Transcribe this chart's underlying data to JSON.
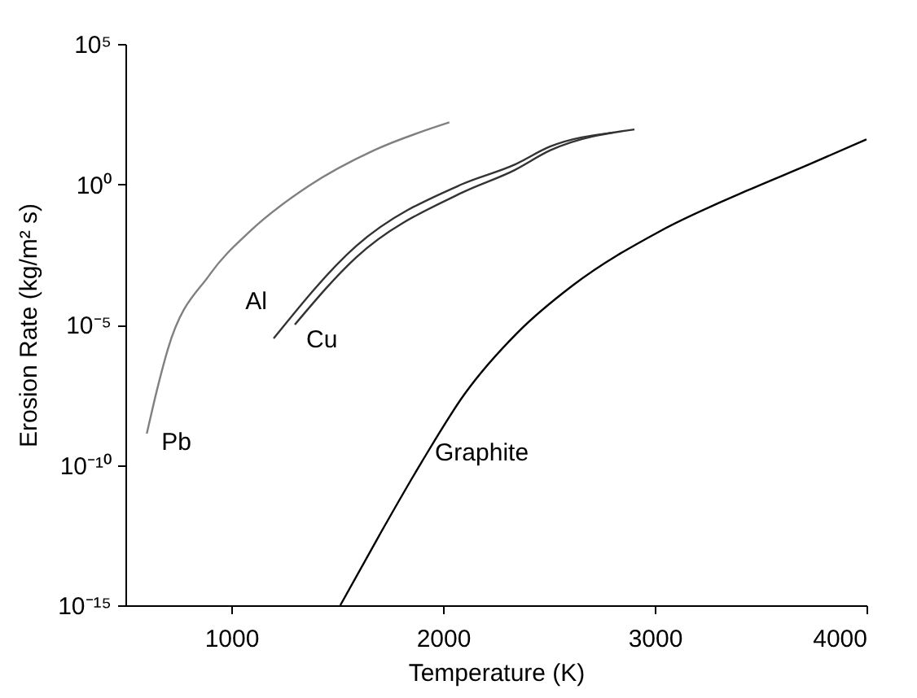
{
  "chart_data": {
    "type": "line",
    "xlabel": "Temperature (K)",
    "ylabel": "Erosion Rate (kg/m² s)",
    "log": "y",
    "xlim": [
      500,
      4000
    ],
    "xticks": [
      1000,
      2000,
      3000,
      4000
    ],
    "ylim": [
      1e-15,
      100000
    ],
    "yticks": [
      {
        "value": 1e-15,
        "label": "10⁻¹⁵"
      },
      {
        "value": 1e-10,
        "label": "10⁻¹⁰"
      },
      {
        "value": 1e-05,
        "label": "10⁻⁵"
      },
      {
        "value": 1,
        "label": "10⁰"
      },
      {
        "value": 100000,
        "label": "10⁵"
      }
    ],
    "grid": false,
    "marker": "none",
    "line_style": "solid",
    "series": [
      {
        "name": "Pb",
        "color": "#808080",
        "x": [
          601,
          650,
          700,
          900,
          1091,
          1366,
          1673,
          2030
        ],
        "values": [
          1.3e-09,
          5e-08,
          1.3e-06,
          0.00063,
          0.022,
          0.87,
          16,
          160
        ]
      },
      {
        "name": "Al",
        "color": "#333333",
        "x": [
          1200,
          1590,
          2089,
          2338,
          2505,
          2804
        ],
        "values": [
          3.2e-06,
          0.0063,
          1,
          5,
          22,
          70
        ]
      },
      {
        "name": "Cu",
        "color": "#333333",
        "x": [
          1300,
          1590,
          2089,
          2338,
          2505,
          2904
        ],
        "values": [
          1e-05,
          0.0025,
          0.5,
          3.2,
          16,
          90
        ]
      },
      {
        "name": "Graphite",
        "color": "#000000",
        "x": [
          1515,
          1700,
          1900,
          2100,
          2350,
          2613,
          3028,
          3444,
          3726,
          4000
        ],
        "values": [
          1e-15,
          3.2e-13,
          1.3e-10,
          3.2e-08,
          5e-06,
          0.00025,
          0.022,
          0.63,
          5,
          40
        ]
      }
    ]
  }
}
